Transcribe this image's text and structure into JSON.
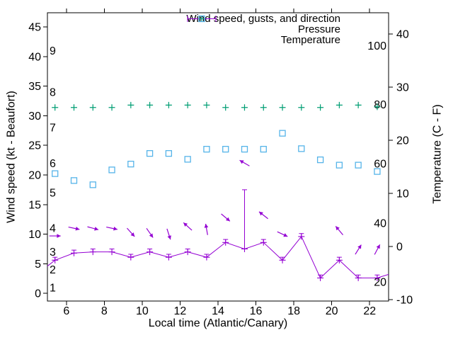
{
  "chart_data": {
    "type": "line",
    "title": "",
    "xlabel": "Local time (Atlantic/Canary)",
    "ylabel_left": "Wind speed (kt - Beaufort)",
    "ylabel_right": "Temperature (C - F)",
    "xlim": [
      5,
      23
    ],
    "x_ticks": [
      6,
      8,
      10,
      12,
      14,
      16,
      18,
      20,
      22
    ],
    "left_ylim_kt": [
      -1.3,
      47.4
    ],
    "left_yticks_kt": [
      0,
      5,
      10,
      15,
      20,
      25,
      30,
      35,
      40,
      45
    ],
    "beaufort_inner_labels": [
      {
        "label": "1",
        "kt": 1
      },
      {
        "label": "2",
        "kt": 4
      },
      {
        "label": "3",
        "kt": 7
      },
      {
        "label": "4",
        "kt": 11
      },
      {
        "label": "5",
        "kt": 17
      },
      {
        "label": "6",
        "kt": 22
      },
      {
        "label": "7",
        "kt": 28
      },
      {
        "label": "8",
        "kt": 34
      },
      {
        "label": "9",
        "kt": 41
      }
    ],
    "right_ylim_c": [
      -10.3,
      44
    ],
    "right_yticks_c": [
      -10,
      0,
      10,
      20,
      30,
      40
    ],
    "fahrenheit_inner_labels": [
      {
        "label": "20",
        "c": -6.7
      },
      {
        "label": "40",
        "c": 4.4
      },
      {
        "label": "60",
        "c": 15.6
      },
      {
        "label": "80",
        "c": 26.7
      },
      {
        "label": "100",
        "c": 37.8
      }
    ],
    "x_hours": [
      5.4,
      6.4,
      7.4,
      8.4,
      9.4,
      10.4,
      11.4,
      12.4,
      13.4,
      14.4,
      15.4,
      16.4,
      17.4,
      18.4,
      19.4,
      20.4,
      21.4,
      22.4
    ],
    "grid": "off",
    "background": "#ffffff",
    "axis_color": "#000000",
    "series": [
      {
        "name": "Wind speed, gusts, and direction",
        "color": "#9400d3",
        "axis": "left",
        "marker": "plus",
        "speed_kt": [
          5.6,
          6.8,
          7,
          7,
          6.1,
          7,
          6.1,
          7,
          6.1,
          8.6,
          7.5,
          8.6,
          5.6,
          9.6,
          2.6,
          5.6,
          2.6,
          2.6
        ],
        "gust_kt": [
          6.1,
          7.3,
          7.5,
          7.5,
          6.6,
          7.5,
          6.6,
          7.5,
          6.6,
          9.1,
          17.5,
          9.1,
          6.1,
          10.1,
          3.1,
          6.1,
          3.1,
          3.1
        ],
        "edge_vertices": [
          {
            "t": 5.0,
            "kt": 4.6
          },
          {
            "t": 23.0,
            "kt": 3.2
          }
        ],
        "direction_arrows": [
          {
            "t": 5.4,
            "kt": 9.7,
            "angle_deg": 0
          },
          {
            "t": 6.4,
            "kt": 11.0,
            "angle_deg": -12
          },
          {
            "t": 7.4,
            "kt": 11.0,
            "angle_deg": -15
          },
          {
            "t": 8.4,
            "kt": 11.0,
            "angle_deg": -12
          },
          {
            "t": 9.4,
            "kt": 10.3,
            "angle_deg": -48
          },
          {
            "t": 10.4,
            "kt": 10.2,
            "angle_deg": -55
          },
          {
            "t": 11.4,
            "kt": 10.0,
            "angle_deg": -72
          },
          {
            "t": 12.4,
            "kt": 11.3,
            "angle_deg": 138
          },
          {
            "t": 13.4,
            "kt": 10.8,
            "angle_deg": 100
          },
          {
            "t": 14.4,
            "kt": 12.8,
            "angle_deg": -40
          },
          {
            "t": 15.4,
            "kt": 22.0,
            "angle_deg": 150
          },
          {
            "t": 16.4,
            "kt": 13.2,
            "angle_deg": 142
          },
          {
            "t": 17.4,
            "kt": 10.0,
            "angle_deg": -25
          },
          {
            "t": 20.4,
            "kt": 10.6,
            "angle_deg": 130
          },
          {
            "t": 21.4,
            "kt": 7.4,
            "angle_deg": 58
          },
          {
            "t": 22.4,
            "kt": 7.4,
            "angle_deg": 62
          }
        ]
      },
      {
        "name": "Pressure",
        "color": "#009e73",
        "axis": "left",
        "marker": "plus",
        "note": "no numeric pressure scale shown; markers sit flat near 31.5 on the left-axis pixel scale",
        "level_kt_equiv": [
          31.4,
          31.4,
          31.4,
          31.4,
          31.8,
          31.8,
          31.8,
          31.8,
          31.8,
          31.4,
          31.4,
          31.4,
          31.4,
          31.4,
          31.4,
          31.8,
          31.8,
          31.5
        ]
      },
      {
        "name": "Temperature",
        "color": "#56b4e9",
        "axis": "right",
        "marker": "open-square",
        "temp_c": [
          13.7,
          12.4,
          11.6,
          14.4,
          15.5,
          17.5,
          17.5,
          16.4,
          18.3,
          18.3,
          18.3,
          18.3,
          21.3,
          18.4,
          16.3,
          15.3,
          15.3,
          14.1
        ]
      }
    ],
    "legend": {
      "position": "top-right-inside",
      "entries": [
        {
          "label": "Wind speed, gusts, and direction",
          "symbol": "errorbar-sample",
          "color": "#9400d3"
        },
        {
          "label": "Pressure",
          "symbol": "plus",
          "color": "#009e73"
        },
        {
          "label": "Temperature",
          "symbol": "open-square",
          "color": "#56b4e9"
        }
      ]
    }
  }
}
